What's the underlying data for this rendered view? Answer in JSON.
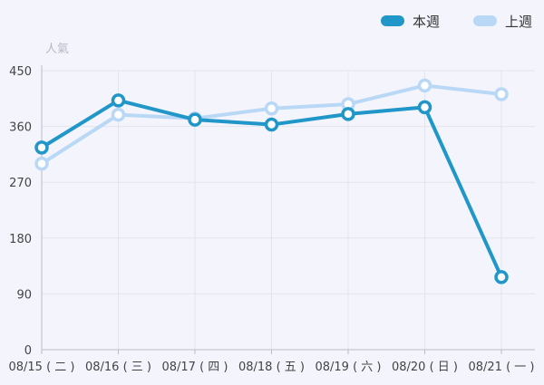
{
  "chart_data": {
    "type": "line",
    "ylabel": "人氣",
    "categories": [
      "08/15 ( 二 )",
      "08/16 ( 三 )",
      "08/17 ( 四 )",
      "08/18 ( 五 )",
      "08/19 ( 六 )",
      "08/20 ( 日 )",
      "08/21 ( 一 )"
    ],
    "yticks": [
      "0",
      "90",
      "180",
      "270",
      "360",
      "450"
    ],
    "ylim": [
      0,
      450
    ],
    "grid": true,
    "legend_position": "top-right",
    "series": [
      {
        "name": "本週",
        "color": "#2196c9",
        "values": [
          326,
          402,
          371,
          363,
          380,
          391,
          117
        ]
      },
      {
        "name": "上週",
        "color": "#b9d8f5",
        "values": [
          300,
          379,
          373,
          389,
          396,
          426,
          412
        ]
      }
    ]
  }
}
